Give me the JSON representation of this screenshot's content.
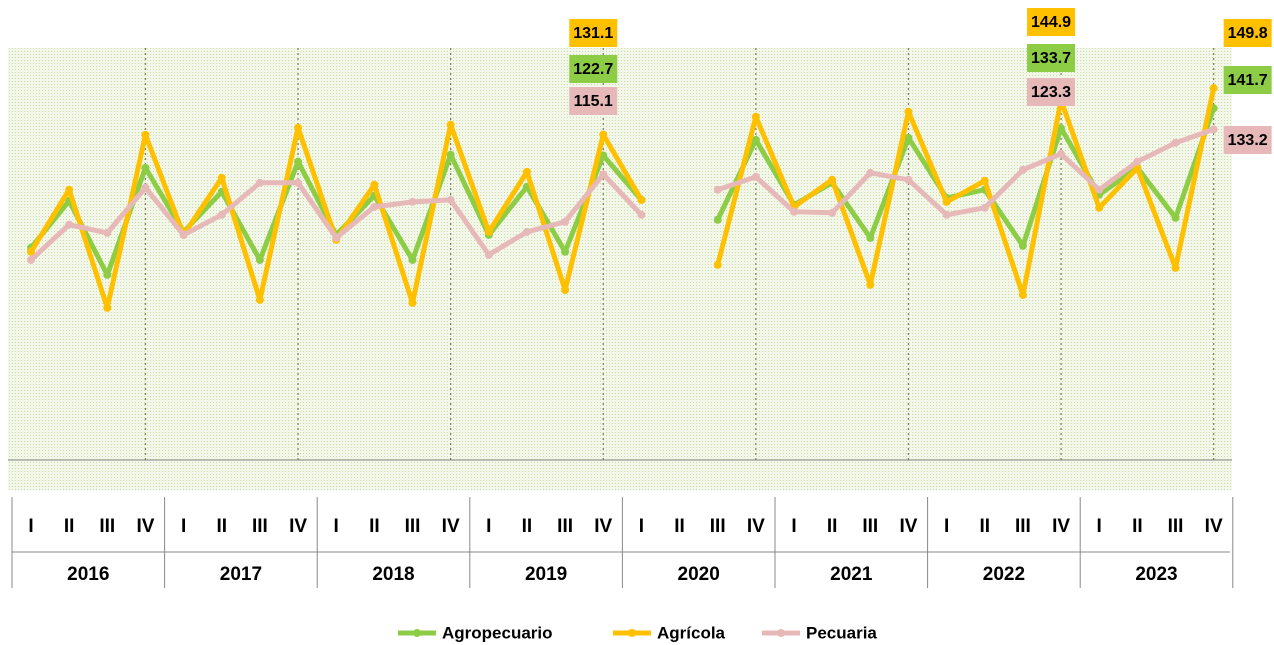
{
  "chart_data": {
    "type": "line",
    "categories": [
      "I",
      "II",
      "III",
      "IV",
      "I",
      "II",
      "III",
      "IV",
      "I",
      "II",
      "III",
      "IV",
      "I",
      "II",
      "III",
      "IV",
      "I",
      "II",
      "III",
      "IV",
      "I",
      "II",
      "III",
      "IV",
      "I",
      "II",
      "III",
      "IV",
      "I",
      "II",
      "III",
      "IV"
    ],
    "years": [
      "2016",
      "2017",
      "2018",
      "2019",
      "2020",
      "2021",
      "2022",
      "2023"
    ],
    "ylim": [
      0,
      166
    ],
    "data_labels_at": [
      15,
      27,
      31
    ],
    "series": [
      {
        "name": "Agropecuario",
        "color": "#8ccd45",
        "values": [
          85.5,
          104.4,
          74.6,
          117.7,
          91.9,
          108.1,
          80.6,
          120.2,
          90.7,
          106.5,
          80.6,
          123.0,
          90.7,
          110.1,
          83.9,
          122.7,
          104.8,
          null,
          96.8,
          129.0,
          102.8,
          111.7,
          89.5,
          129.8,
          105.6,
          108.9,
          86.3,
          133.7,
          106.9,
          117.7,
          97.6,
          141.7
        ]
      },
      {
        "name": "Agrícola",
        "color": "#ffc000",
        "values": [
          83.9,
          108.9,
          61.3,
          131.0,
          90.7,
          113.7,
          64.5,
          133.9,
          88.7,
          110.9,
          63.3,
          135.1,
          91.9,
          116.1,
          68.5,
          131.1,
          104.8,
          null,
          78.6,
          138.3,
          102.0,
          112.9,
          70.6,
          140.3,
          104.0,
          112.5,
          66.5,
          144.9,
          101.6,
          117.7,
          77.4,
          149.8
        ]
      },
      {
        "name": "Pecuaria",
        "color": "#e6b9b8",
        "values": [
          80.6,
          94.8,
          91.5,
          109.7,
          90.7,
          98.8,
          111.7,
          111.7,
          89.5,
          102.0,
          104.0,
          104.8,
          82.7,
          91.9,
          96.0,
          115.1,
          98.8,
          null,
          108.9,
          114.1,
          100.0,
          99.6,
          115.7,
          112.9,
          98.8,
          101.6,
          116.9,
          123.3,
          108.9,
          120.2,
          127.8,
          133.2
        ]
      }
    ]
  }
}
